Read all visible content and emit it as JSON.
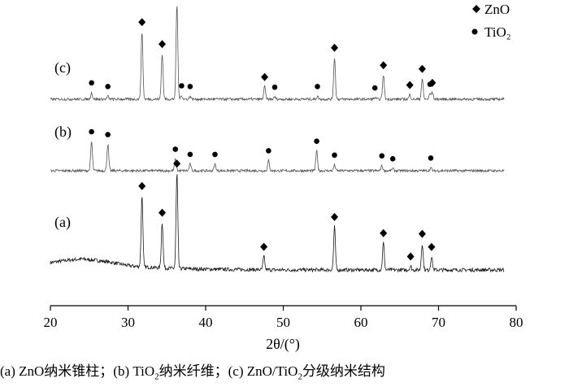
{
  "chart_data": {
    "type": "line",
    "title": "",
    "xlabel": "2θ/(°)",
    "ylabel": "",
    "xlim": [
      20,
      80
    ],
    "xticks": [
      20,
      30,
      40,
      50,
      60,
      70,
      80
    ],
    "grid": false,
    "legend": {
      "position": "top-right",
      "entries": [
        {
          "marker": "diamond",
          "label": "ZnO"
        },
        {
          "marker": "circle",
          "label": "TiO₂"
        }
      ]
    },
    "series": [
      {
        "name": "(a)",
        "baseline": 0.0,
        "background": [
          [
            20,
            0.1
          ],
          [
            22,
            0.13
          ],
          [
            24,
            0.15
          ],
          [
            26,
            0.13
          ],
          [
            28,
            0.1
          ],
          [
            30,
            0.06
          ],
          [
            32,
            0.04
          ],
          [
            36,
            0.02
          ],
          [
            40,
            0.01
          ],
          [
            50,
            0.0
          ],
          [
            80,
            0.0
          ]
        ],
        "peaks": [
          {
            "x": 31.8,
            "h": 0.97,
            "marker": "diamond"
          },
          {
            "x": 34.4,
            "h": 0.62,
            "marker": "diamond"
          },
          {
            "x": 36.3,
            "h": 1.3,
            "marker": "diamond"
          },
          {
            "x": 47.5,
            "h": 0.18,
            "marker": "diamond"
          },
          {
            "x": 56.6,
            "h": 0.59,
            "marker": "diamond"
          },
          {
            "x": 62.9,
            "h": 0.37,
            "marker": "diamond"
          },
          {
            "x": 66.4,
            "h": 0.05,
            "marker": "diamond"
          },
          {
            "x": 67.9,
            "h": 0.36,
            "marker": "diamond"
          },
          {
            "x": 69.1,
            "h": 0.18,
            "marker": "diamond"
          }
        ]
      },
      {
        "name": "(b)",
        "baseline": 1.0,
        "background": [
          [
            20,
            0.0
          ],
          [
            80,
            0.0
          ]
        ],
        "peaks": [
          {
            "x": 25.3,
            "h": 0.4,
            "marker": "circle"
          },
          {
            "x": 27.4,
            "h": 0.36,
            "marker": "circle"
          },
          {
            "x": 36.1,
            "h": 0.16,
            "marker": "circle"
          },
          {
            "x": 38.0,
            "h": 0.09,
            "marker": "circle"
          },
          {
            "x": 41.2,
            "h": 0.09,
            "marker": "circle"
          },
          {
            "x": 48.1,
            "h": 0.14,
            "marker": "circle"
          },
          {
            "x": 54.3,
            "h": 0.27,
            "marker": "circle"
          },
          {
            "x": 56.6,
            "h": 0.08,
            "marker": "circle"
          },
          {
            "x": 62.7,
            "h": 0.07,
            "marker": "circle"
          },
          {
            "x": 64.1,
            "h": 0.03,
            "marker": "circle"
          },
          {
            "x": 69.0,
            "h": 0.04,
            "marker": "circle"
          }
        ]
      },
      {
        "name": "(c)",
        "baseline": 2.0,
        "background": [
          [
            20,
            0.0
          ],
          [
            80,
            0.0
          ]
        ],
        "peaks": [
          {
            "x": 25.3,
            "h": 0.09,
            "marker": "circle"
          },
          {
            "x": 27.4,
            "h": 0.04,
            "marker": "circle"
          },
          {
            "x": 31.8,
            "h": 0.92,
            "marker": "diamond"
          },
          {
            "x": 34.4,
            "h": 0.62,
            "marker": "diamond"
          },
          {
            "x": 36.3,
            "h": 1.3,
            "marker": "diamond"
          },
          {
            "x": 36.9,
            "h": 0.05,
            "marker": "circle"
          },
          {
            "x": 38.0,
            "h": 0.04,
            "marker": "circle"
          },
          {
            "x": 47.6,
            "h": 0.17,
            "marker": "diamond"
          },
          {
            "x": 48.9,
            "h": 0.03,
            "marker": "circle"
          },
          {
            "x": 54.4,
            "h": 0.04,
            "marker": "circle"
          },
          {
            "x": 56.6,
            "h": 0.57,
            "marker": "diamond"
          },
          {
            "x": 61.8,
            "h": 0.02,
            "marker": "circle"
          },
          {
            "x": 62.9,
            "h": 0.33,
            "marker": "diamond"
          },
          {
            "x": 66.3,
            "h": 0.06,
            "marker": "diamond"
          },
          {
            "x": 67.9,
            "h": 0.28,
            "marker": "diamond"
          },
          {
            "x": 68.9,
            "h": 0.07,
            "marker": "circle"
          },
          {
            "x": 69.2,
            "h": 0.09,
            "marker": "diamond"
          }
        ]
      }
    ]
  },
  "caption": {
    "a_prefix": "(a) ZnO纳米锥柱；",
    "b_prefix": "(b) TiO",
    "b_sub": "2",
    "b_suffix": "纳米纤维；",
    "c_prefix": "(c) ZnO/TiO",
    "c_sub": "2",
    "c_suffix": "分级纳米结构"
  },
  "colors": {
    "trace_a": "#1a1a1a",
    "trace_b": "#555555",
    "trace_c": "#555555",
    "marker": "#000000"
  }
}
